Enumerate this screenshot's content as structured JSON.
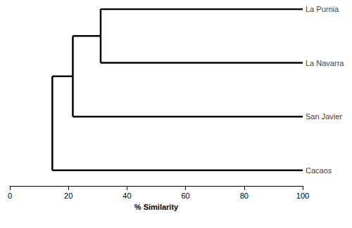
{
  "chart_data": {
    "type": "dendrogram",
    "xlabel": "% Similarity",
    "xlim": [
      0,
      100
    ],
    "xticks": [
      0,
      20,
      40,
      60,
      80,
      100
    ],
    "color": "#000000",
    "tree": {
      "similarity": 14.5,
      "children": [
        {
          "similarity": 21.5,
          "children": [
            {
              "similarity": 31,
              "children": [
                {
                  "name": "La Purnia"
                },
                {
                  "name": "La Navarra"
                }
              ]
            },
            {
              "name": "San Javier"
            }
          ]
        },
        {
          "name": "Cacaos"
        }
      ]
    }
  }
}
